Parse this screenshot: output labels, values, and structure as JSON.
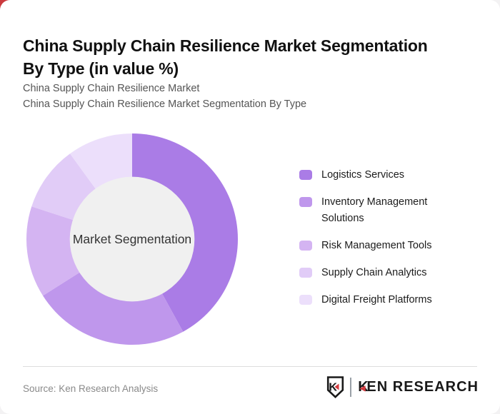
{
  "card": {
    "title_line1": "China Supply Chain Resilience Market Segmentation",
    "title_line2": "By Type (in value %)",
    "subtitle_line1": "China Supply Chain Resilience Market",
    "subtitle_line2": "China Supply Chain Resilience Market Segmentation By Type"
  },
  "chart_data": {
    "type": "pie",
    "variant": "donut",
    "title": "China Supply Chain Resilience Market Segmentation By Type (in value %)",
    "center_label": "Market Segmentation",
    "categories": [
      "Logistics Services",
      "Inventory Management Solutions",
      "Risk Management Tools",
      "Supply Chain Analytics",
      "Digital Freight Platforms"
    ],
    "values": [
      42,
      24,
      14,
      10,
      10
    ],
    "unit": "value %",
    "colors": [
      "#aa7ce6",
      "#bf97ec",
      "#d4b4f2",
      "#e1ccf7",
      "#ecdffb"
    ],
    "start_angle_deg": 0,
    "clockwise": true,
    "inner_radius_ratio": 0.59,
    "center_fill": "#f0f0f0",
    "legend_position": "right"
  },
  "footer": {
    "source": "Source: Ken Research Analysis",
    "logo": {
      "shield_letter": "K",
      "brand_first_letter": "K",
      "brand_rest": "EN RESEARCH",
      "red": "#d43a3e"
    }
  },
  "theme": {
    "page_bg": "#f3f2f3",
    "card_bg": "#ffffff",
    "corner_accent": "#cb3a3e",
    "title_color": "#111111",
    "subtitle_color": "#555555",
    "legend_text_color": "#1c1c1c",
    "divider_color": "#dddddd",
    "source_color": "#8a8a8a",
    "center_text_color": "#333333"
  }
}
